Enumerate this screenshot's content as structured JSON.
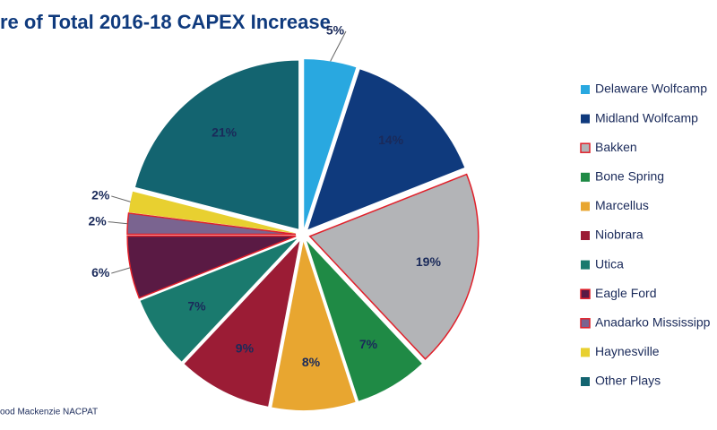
{
  "chart_data": {
    "type": "pie",
    "title": "re of Total 2016-18 CAPEX Increase",
    "source": "ood Mackenzie NACPAT",
    "categories": [
      "Delaware Wolfcamp",
      "Midland Wolfcamp",
      "Bakken",
      "Bone Spring",
      "Marcellus",
      "Niobrara",
      "Utica",
      "Eagle Ford",
      "Anadarko Mississipp",
      "Haynesville",
      "Other Plays"
    ],
    "values": [
      5,
      14,
      19,
      7,
      8,
      9,
      7,
      6,
      2,
      2,
      21
    ],
    "value_labels": [
      "5%",
      "14%",
      "19%",
      "7%",
      "8%",
      "9%",
      "7%",
      "6%",
      "2%",
      "2%",
      "21%"
    ],
    "colors": [
      "#29a8e0",
      "#0f3a7d",
      "#b3b4b7",
      "#1f8a45",
      "#e8a630",
      "#9b1c35",
      "#1a7a6e",
      "#5a1a44",
      "#7a6490",
      "#e8d030",
      "#136470"
    ],
    "edge_colors": [
      null,
      null,
      "#e0202a",
      null,
      null,
      null,
      null,
      "#e0202a",
      "#e0202a",
      null,
      null
    ]
  }
}
